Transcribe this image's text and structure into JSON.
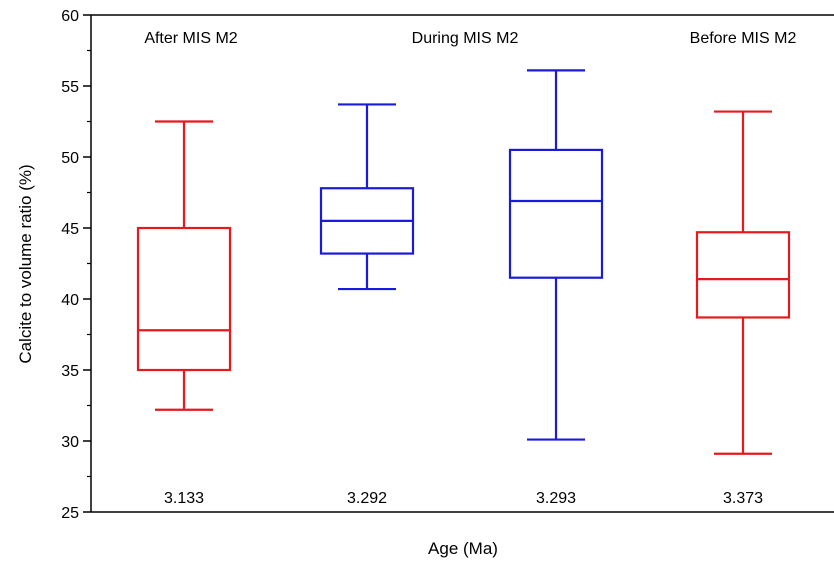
{
  "chart_data": {
    "type": "box",
    "xlabel": "Age (Ma)",
    "ylabel": "Calcite to volume ratio (%)",
    "ylim": [
      25,
      60
    ],
    "y_ticks": [
      25,
      30,
      35,
      40,
      45,
      50,
      55,
      60
    ],
    "y_tick_labels": [
      "25",
      "30",
      "35",
      "40",
      "45",
      "50",
      "55",
      "60"
    ],
    "grid": false,
    "period_labels": [
      "After MIS M2",
      "During MIS M2",
      "Before MIS M2"
    ],
    "boxes": [
      {
        "label": "3.133",
        "color": "#e8191c",
        "min": 32.2,
        "q1": 35.0,
        "median": 37.8,
        "q3": 45.0,
        "max": 52.5
      },
      {
        "label": "3.292",
        "color": "#1a1adb",
        "min": 40.7,
        "q1": 43.2,
        "median": 45.5,
        "q3": 47.8,
        "max": 53.7
      },
      {
        "label": "3.293",
        "color": "#1a1adb",
        "min": 30.1,
        "q1": 41.5,
        "median": 46.9,
        "q3": 50.5,
        "max": 56.1
      },
      {
        "label": "3.373",
        "color": "#e8191c",
        "min": 29.1,
        "q1": 38.7,
        "median": 41.4,
        "q3": 44.7,
        "max": 53.2
      }
    ]
  }
}
